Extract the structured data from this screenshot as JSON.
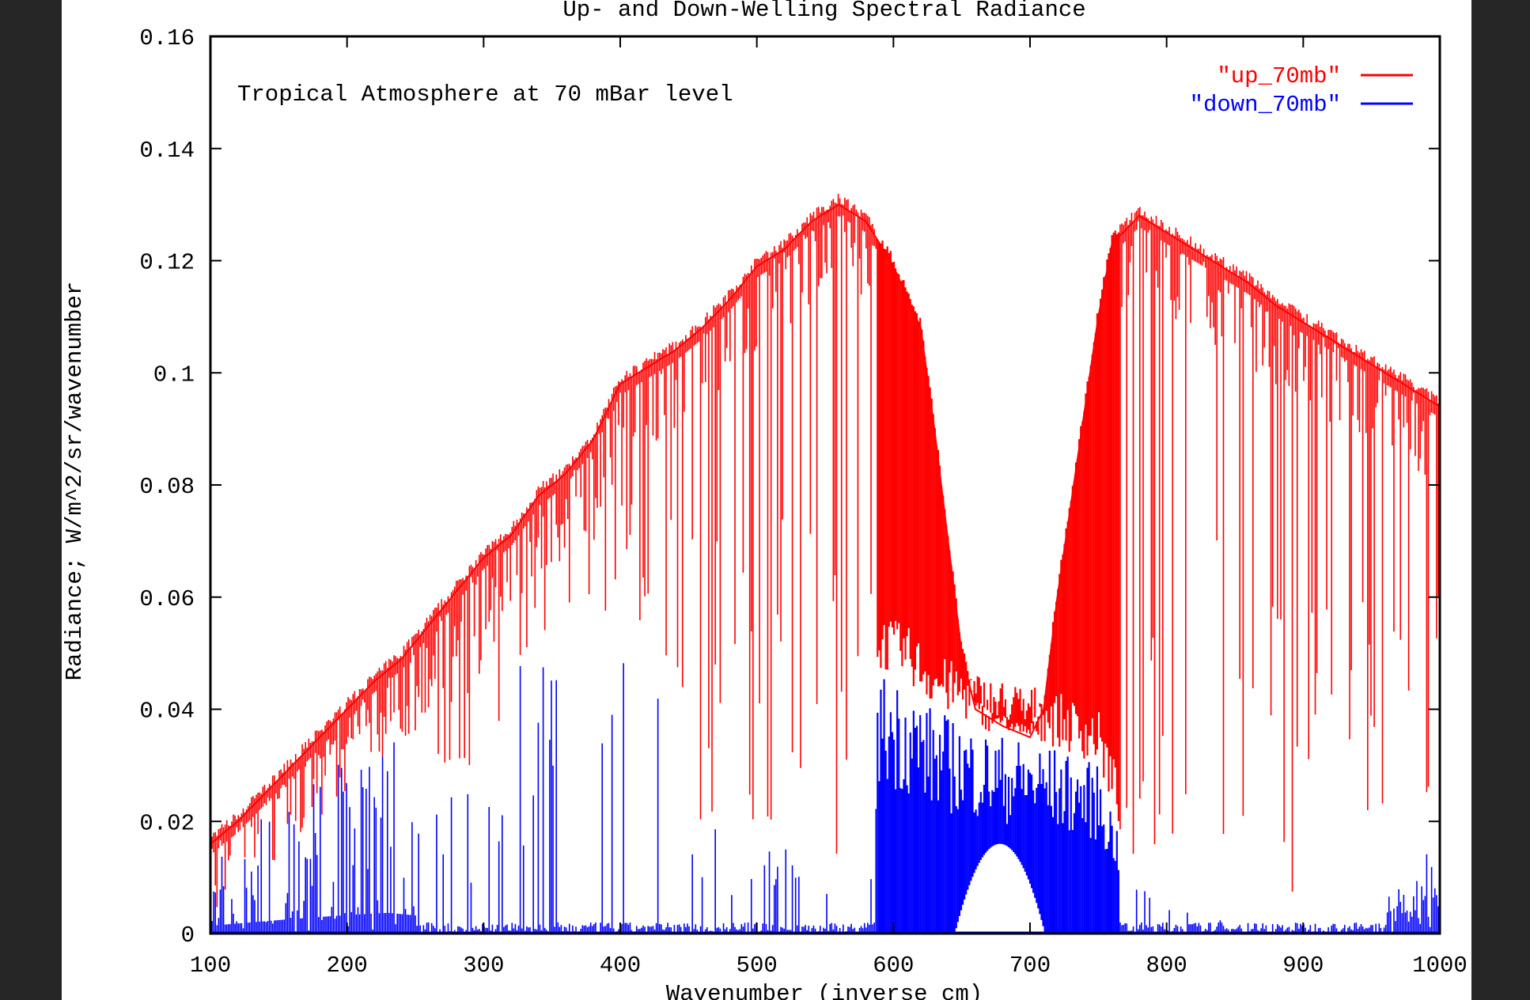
{
  "chart_data": {
    "type": "line",
    "title": "Up- and Down-Welling Spectral Radiance",
    "annotation": "Tropical Atmosphere at 70 mBar level",
    "xlabel": "Wavenumber (inverse cm)",
    "ylabel": "Radiance; W/m^2/sr/wavenumber",
    "xlim": [
      100,
      1000
    ],
    "ylim": [
      0,
      0.16
    ],
    "xticks": [
      "100",
      "200",
      "300",
      "400",
      "500",
      "600",
      "700",
      "800",
      "900",
      "1000"
    ],
    "yticks": [
      "0",
      "0.02",
      "0.04",
      "0.06",
      "0.08",
      "0.1",
      "0.12",
      "0.14",
      "0.16"
    ],
    "grid": false,
    "legend_position": "top-right",
    "series": [
      {
        "name": "\"up_70mb\"",
        "color": "#ff0000",
        "x": [
          100,
          120,
          140,
          160,
          180,
          200,
          220,
          240,
          260,
          280,
          300,
          320,
          340,
          360,
          380,
          400,
          420,
          440,
          460,
          480,
          500,
          520,
          540,
          560,
          580,
          600,
          620,
          630,
          640,
          650,
          660,
          680,
          700,
          710,
          720,
          735,
          750,
          760,
          780,
          800,
          820,
          840,
          860,
          880,
          900,
          920,
          940,
          960,
          980,
          1000
        ],
        "y": [
          0.016,
          0.02,
          0.025,
          0.03,
          0.035,
          0.04,
          0.045,
          0.049,
          0.055,
          0.061,
          0.067,
          0.071,
          0.078,
          0.082,
          0.088,
          0.098,
          0.101,
          0.104,
          0.108,
          0.113,
          0.119,
          0.122,
          0.127,
          0.13,
          0.127,
          0.119,
          0.108,
          0.09,
          0.07,
          0.05,
          0.04,
          0.037,
          0.035,
          0.04,
          0.06,
          0.085,
          0.11,
          0.123,
          0.128,
          0.125,
          0.122,
          0.119,
          0.116,
          0.112,
          0.109,
          0.106,
          0.103,
          0.1,
          0.097,
          0.094
        ]
      },
      {
        "name": "\"down_70mb\"",
        "color": "#0000ff",
        "x": [
          100,
          130,
          160,
          200,
          230,
          260,
          300,
          330,
          360,
          390,
          420,
          450,
          500,
          550,
          580,
          590,
          610,
          630,
          650,
          670,
          690,
          710,
          730,
          750,
          770,
          800,
          850,
          950,
          1000
        ],
        "y": [
          0.014,
          0.02,
          0.026,
          0.033,
          0.037,
          0.03,
          0.03,
          0.05,
          0.055,
          0.055,
          0.053,
          0.02,
          0.02,
          0.01,
          0.02,
          0.047,
          0.045,
          0.04,
          0.038,
          0.036,
          0.035,
          0.034,
          0.032,
          0.03,
          0.015,
          0.005,
          0.002,
          0.003,
          0.018
        ]
      }
    ]
  }
}
